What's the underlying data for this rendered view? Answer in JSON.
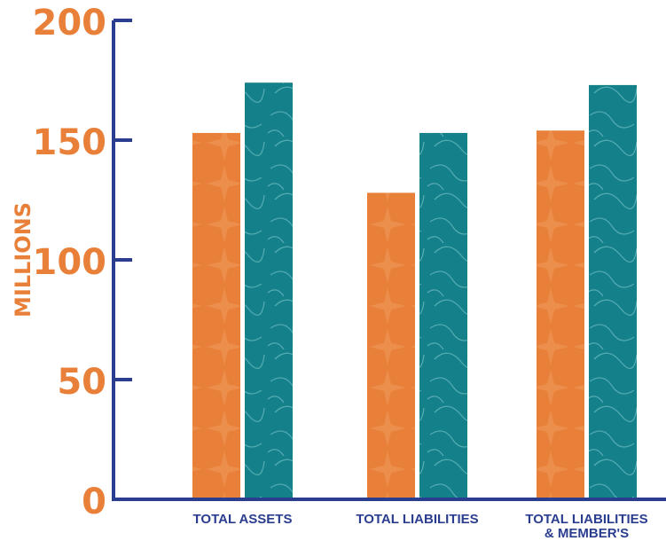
{
  "chart_data": {
    "type": "bar",
    "title": "",
    "xlabel": "",
    "ylabel": "MILLIONS",
    "ylim": [
      0,
      200
    ],
    "yticks": [
      "0",
      "50",
      "100",
      "150",
      "200"
    ],
    "categories": [
      [
        "TOTAL ASSETS"
      ],
      [
        "TOTAL LIABILITIES"
      ],
      [
        "TOTAL LIABILITIES",
        "& MEMBER'S"
      ]
    ],
    "series": [
      {
        "values": [
          153,
          128,
          154
        ]
      },
      {
        "values": [
          174,
          153,
          173
        ]
      }
    ],
    "grid": false,
    "legend": "none"
  },
  "colors": {
    "axis": "#2b3d8f",
    "label": "#e8803a",
    "series": [
      "#e8803a",
      "#13808a"
    ],
    "series_light": [
      "#f09a5a",
      "#3aa3ab"
    ]
  }
}
